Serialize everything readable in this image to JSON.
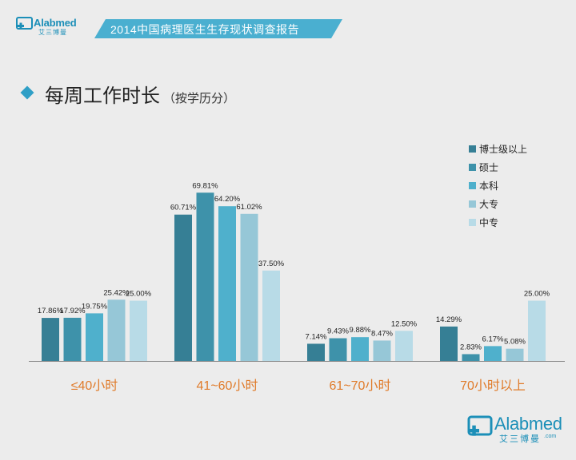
{
  "header": {
    "brand_logo": "Alabmed",
    "brand_logo_sub": "艾三博曼",
    "title": "2014中国病理医生生存现状调查报告"
  },
  "section": {
    "heading": "每周工作时长",
    "subheading": "（按学历分）"
  },
  "footer": {
    "brand_logo": "Alabmed",
    "brand_logo_sub": "艾三博曼",
    "brand_domain": ".com"
  },
  "colors": {
    "accent": "#2f9fc6",
    "header_band": "#4aafd0",
    "category_label": "#e07b2a"
  },
  "chart_data": {
    "type": "bar",
    "title": "每周工作时长（按学历分）",
    "xlabel": "",
    "ylabel": "",
    "ylim": [
      0,
      80
    ],
    "grid": false,
    "legend_position": "top-right",
    "categories": [
      "≤40小时",
      "41~60小时",
      "61~70小时",
      "70小时以上"
    ],
    "series": [
      {
        "name": "博士级以上",
        "color": "#367f95",
        "values": [
          17.86,
          60.71,
          7.14,
          14.29
        ],
        "labels": [
          "17.86%",
          "60.71%",
          "7.14%",
          "14.29%"
        ]
      },
      {
        "name": "硕士",
        "color": "#3e92aa",
        "values": [
          17.92,
          69.81,
          9.43,
          2.83
        ],
        "labels": [
          "17.92%",
          "69.81%",
          "9.43%",
          "2.83%"
        ]
      },
      {
        "name": "本科",
        "color": "#4fb0cc",
        "values": [
          19.75,
          64.2,
          9.88,
          6.17
        ],
        "labels": [
          "19.75%",
          "64.20%",
          "9.88%",
          "6.17%"
        ]
      },
      {
        "name": "大专",
        "color": "#96c7d7",
        "values": [
          25.42,
          61.02,
          8.47,
          5.08
        ],
        "labels": [
          "25.42%",
          "61.02%",
          "8.47%",
          "5.08%"
        ]
      },
      {
        "name": "中专",
        "color": "#b8dbe7",
        "values": [
          25.0,
          37.5,
          12.5,
          25.0
        ],
        "labels": [
          "25.00%",
          "37.50%",
          "12.50%",
          "25.00%"
        ]
      }
    ]
  }
}
